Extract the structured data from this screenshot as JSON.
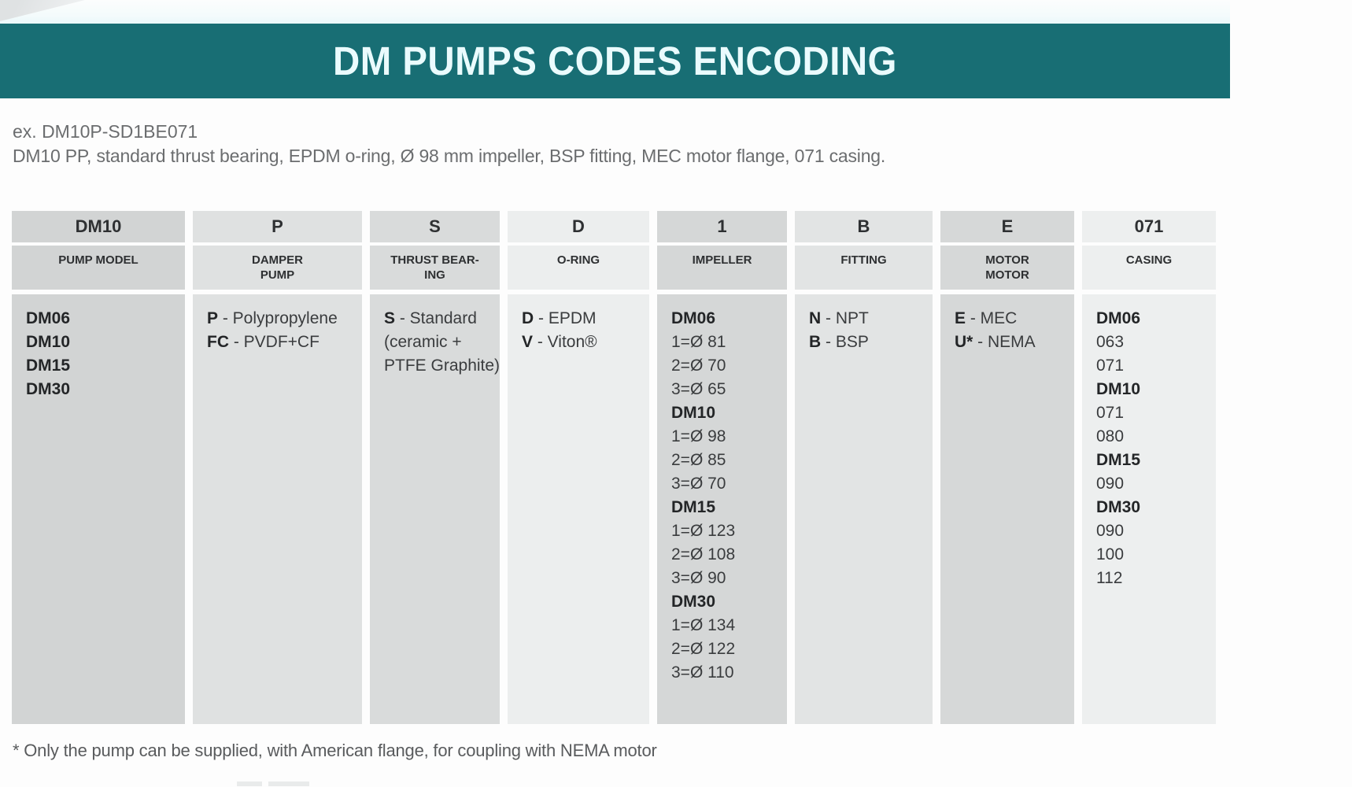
{
  "page": {
    "title": "DM PUMPS CODES ENCODING",
    "example_code": "ex. DM10P-SD1BE071",
    "example_description": "DM10 PP, standard thrust bearing, EPDM o-ring, Ø 98 mm impeller, BSP fitting, MEC motor flange, 071 casing.",
    "footnote": "* Only the pump can be supplied, with American flange, for coupling with NEMA motor",
    "accent_color": "#186e74"
  },
  "table": {
    "columns": [
      {
        "code": "DM10",
        "label": "PUMP MODEL",
        "entries": [
          {
            "b": "DM06"
          },
          {
            "b": "DM10"
          },
          {
            "b": "DM15"
          },
          {
            "b": "DM30"
          }
        ]
      },
      {
        "code": "P",
        "label": "DAMPER\nPUMP",
        "entries": [
          {
            "b": "P",
            "t": "- Polypropylene"
          },
          {
            "b": "FC",
            "t": "- PVDF+CF"
          }
        ]
      },
      {
        "code": "S",
        "label": "THRUST BEAR-\nING",
        "entries": [
          {
            "b": "S",
            "t": "- Standard"
          },
          {
            "t": "(ceramic +"
          },
          {
            "t": "PTFE Graphite)"
          }
        ]
      },
      {
        "code": "D",
        "label": "O-RING",
        "entries": [
          {
            "b": "D",
            "t": "- EPDM"
          },
          {
            "b": "V",
            "t": "- Viton®"
          }
        ]
      },
      {
        "code": "1",
        "label": "IMPELLER",
        "entries": [
          {
            "b": "DM06"
          },
          {
            "t": "1=Ø 81"
          },
          {
            "t": "2=Ø 70"
          },
          {
            "t": "3=Ø 65"
          },
          {
            "b": "DM10"
          },
          {
            "t": "1=Ø 98"
          },
          {
            "t": "2=Ø 85"
          },
          {
            "t": "3=Ø 70"
          },
          {
            "b": "DM15"
          },
          {
            "t": "1=Ø 123"
          },
          {
            "t": "2=Ø 108"
          },
          {
            "t": "3=Ø 90"
          },
          {
            "b": "DM30"
          },
          {
            "t": "1=Ø 134"
          },
          {
            "t": "2=Ø 122"
          },
          {
            "t": "3=Ø 110"
          }
        ]
      },
      {
        "code": "B",
        "label": "FITTING",
        "entries": [
          {
            "b": "N",
            "t": "- NPT"
          },
          {
            "b": "B",
            "t": "- BSP"
          }
        ]
      },
      {
        "code": "E",
        "label": "MOTOR\nMOTOR",
        "entries": [
          {
            "b": "E",
            "t": "- MEC"
          },
          {
            "b": "U*",
            "t": "- NEMA"
          }
        ]
      },
      {
        "code": "071",
        "label": "CASING",
        "entries": [
          {
            "b": "DM06"
          },
          {
            "t": "063"
          },
          {
            "t": "071"
          },
          {
            "b": "DM10"
          },
          {
            "t": "071"
          },
          {
            "t": "080"
          },
          {
            "b": "DM15"
          },
          {
            "t": "090"
          },
          {
            "b": "DM30"
          },
          {
            "t": "090"
          },
          {
            "t": "100"
          },
          {
            "t": "112"
          }
        ]
      }
    ]
  }
}
